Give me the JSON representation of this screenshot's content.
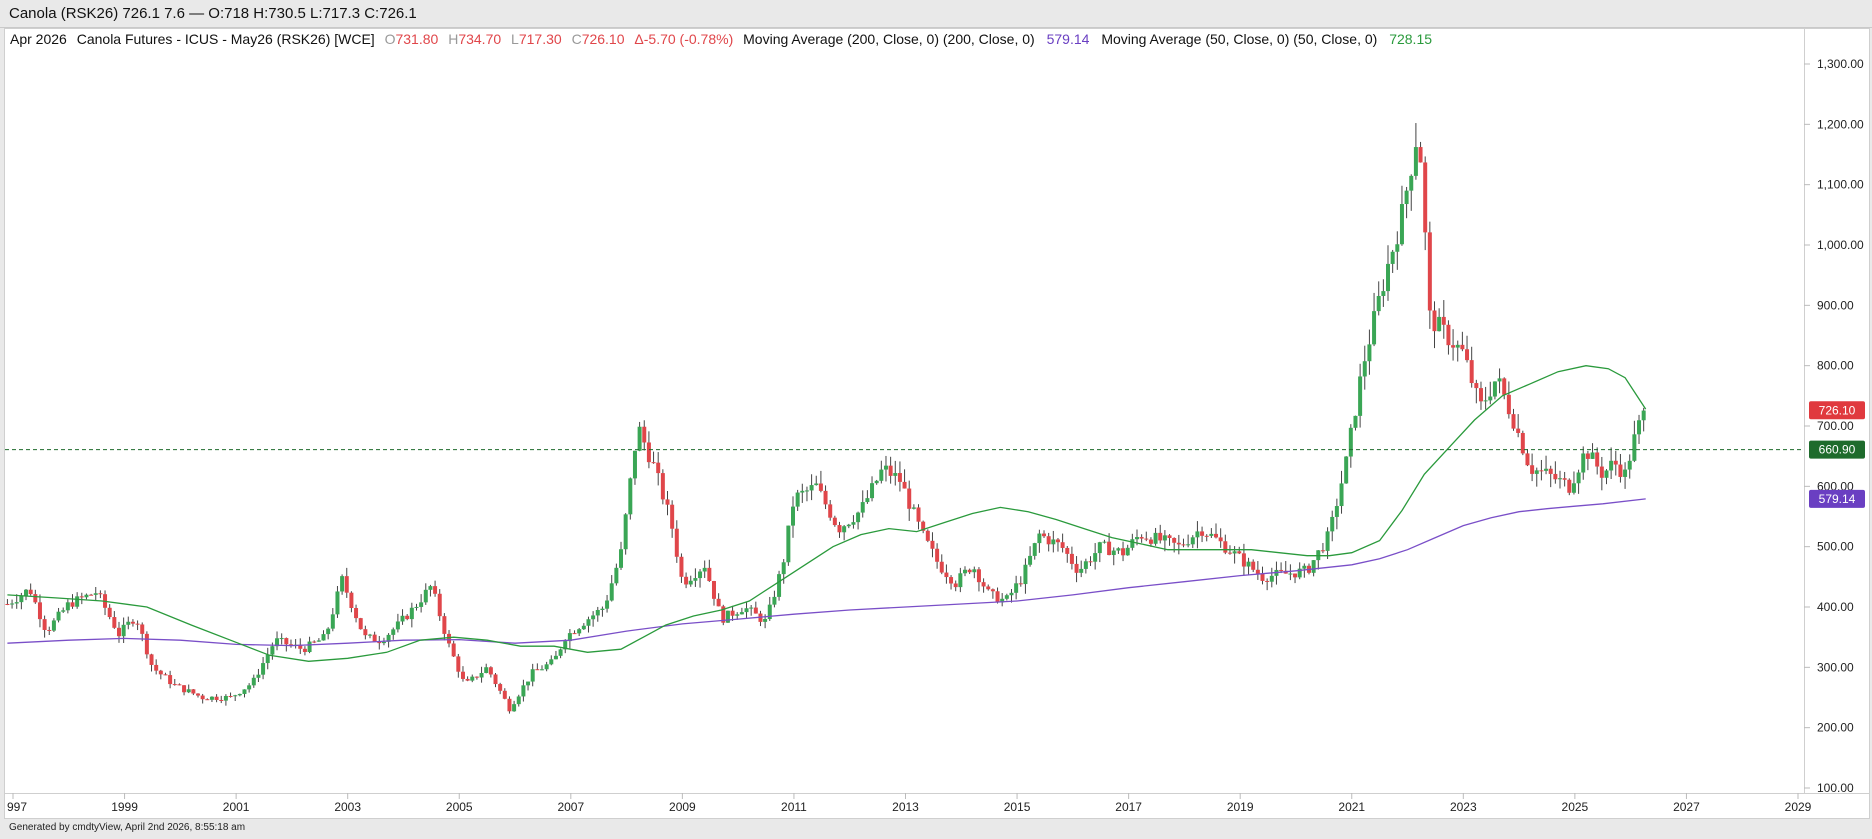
{
  "window": {
    "title": "Canola (RSK26) 726.1 7.6 — O:718 H:730.5 L:717.3 C:726.1"
  },
  "legend": {
    "period": "Apr 2026",
    "instrument": "Canola Futures - ICUS - May26 (RSK26) [WCE]",
    "o_label": "O",
    "o_value": "731.80",
    "h_label": "H",
    "h_value": "734.70",
    "l_label": "L",
    "l_value": "717.30",
    "c_label": "C",
    "c_value": "726.10",
    "change": "Δ-5.70 (-0.78%)",
    "ma200_label": "Moving Average (200, Close, 0)  (200, Close, 0)",
    "ma200_value": "579.14",
    "ma50_label": "Moving Average (50, Close, 0)  (50, Close, 0)",
    "ma50_value": "728.15"
  },
  "price_tags": {
    "last": "726.10",
    "level": "660.90",
    "ma200": "579.14"
  },
  "footer": {
    "text": "Generated by cmdtyView, April 2nd 2026, 8:55:18 am"
  },
  "colors": {
    "up": "#3aa655",
    "down": "#e0464a",
    "ma50": "#2a9a3c",
    "ma200": "#7a4fc8",
    "level": "#1e6b2c",
    "last_tag": "#e0393e",
    "ma200_tag": "#6a3fc2"
  },
  "chart_data": {
    "type": "candlestick",
    "y_axis": {
      "min": 100,
      "max": 1300,
      "position": "right",
      "ticks": [
        "100.00",
        "200.00",
        "300.00",
        "400.00",
        "500.00",
        "600.00",
        "700.00",
        "800.00",
        "900.00",
        "1,000.00",
        "1,100.00",
        "1,200.00",
        "1,300.00"
      ]
    },
    "x_axis": {
      "start_year": 1996.85,
      "end_year": 2029.3,
      "ticks": [
        {
          "label": "997",
          "year": 1997
        },
        {
          "label": "1999",
          "year": 1999
        },
        {
          "label": "2001",
          "year": 2001
        },
        {
          "label": "2003",
          "year": 2003
        },
        {
          "label": "2005",
          "year": 2005
        },
        {
          "label": "2007",
          "year": 2007
        },
        {
          "label": "2009",
          "year": 2009
        },
        {
          "label": "2011",
          "year": 2011
        },
        {
          "label": "2013",
          "year": 2013
        },
        {
          "label": "2015",
          "year": 2015
        },
        {
          "label": "2017",
          "year": 2017
        },
        {
          "label": "2019",
          "year": 2019
        },
        {
          "label": "2021",
          "year": 2021
        },
        {
          "label": "2023",
          "year": 2023
        },
        {
          "label": "2025",
          "year": 2025
        },
        {
          "label": "2027",
          "year": 2027
        },
        {
          "label": "2029",
          "year": 2029
        }
      ]
    },
    "grid": false,
    "close_path": [
      [
        1996.9,
        405
      ],
      [
        1997.3,
        430
      ],
      [
        1997.6,
        360
      ],
      [
        1998.0,
        405
      ],
      [
        1998.5,
        425
      ],
      [
        1998.9,
        355
      ],
      [
        1999.2,
        385
      ],
      [
        1999.5,
        300
      ],
      [
        1999.9,
        270
      ],
      [
        2000.4,
        250
      ],
      [
        2000.9,
        250
      ],
      [
        2001.3,
        275
      ],
      [
        2001.7,
        345
      ],
      [
        2002.2,
        330
      ],
      [
        2002.6,
        350
      ],
      [
        2002.9,
        445
      ],
      [
        2003.3,
        350
      ],
      [
        2003.6,
        345
      ],
      [
        2003.9,
        370
      ],
      [
        2004.2,
        400
      ],
      [
        2004.5,
        435
      ],
      [
        2004.8,
        340
      ],
      [
        2005.1,
        270
      ],
      [
        2005.5,
        300
      ],
      [
        2005.9,
        232
      ],
      [
        2006.3,
        290
      ],
      [
        2006.7,
        310
      ],
      [
        2006.9,
        350
      ],
      [
        2007.3,
        380
      ],
      [
        2007.6,
        400
      ],
      [
        2007.9,
        490
      ],
      [
        2008.2,
        700
      ],
      [
        2008.5,
        630
      ],
      [
        2008.8,
        540
      ],
      [
        2009.0,
        440
      ],
      [
        2009.4,
        470
      ],
      [
        2009.7,
        380
      ],
      [
        2010.1,
        400
      ],
      [
        2010.5,
        375
      ],
      [
        2010.8,
        470
      ],
      [
        2011.0,
        580
      ],
      [
        2011.4,
        600
      ],
      [
        2011.8,
        530
      ],
      [
        2012.2,
        560
      ],
      [
        2012.6,
        630
      ],
      [
        2012.9,
        610
      ],
      [
        2013.3,
        520
      ],
      [
        2013.6,
        470
      ],
      [
        2013.9,
        440
      ],
      [
        2014.2,
        470
      ],
      [
        2014.5,
        420
      ],
      [
        2014.8,
        410
      ],
      [
        2015.1,
        450
      ],
      [
        2015.4,
        520
      ],
      [
        2015.8,
        500
      ],
      [
        2016.1,
        460
      ],
      [
        2016.5,
        500
      ],
      [
        2016.9,
        490
      ],
      [
        2017.2,
        520
      ],
      [
        2017.6,
        510
      ],
      [
        2017.9,
        500
      ],
      [
        2018.3,
        530
      ],
      [
        2018.6,
        510
      ],
      [
        2019.0,
        480
      ],
      [
        2019.4,
        450
      ],
      [
        2019.8,
        455
      ],
      [
        2020.2,
        460
      ],
      [
        2020.6,
        520
      ],
      [
        2020.9,
        640
      ],
      [
        2021.2,
        800
      ],
      [
        2021.6,
        950
      ],
      [
        2021.9,
        1050
      ],
      [
        2022.2,
        1200
      ],
      [
        2022.4,
        880
      ],
      [
        2022.7,
        850
      ],
      [
        2023.0,
        820
      ],
      [
        2023.3,
        730
      ],
      [
        2023.6,
        780
      ],
      [
        2023.9,
        710
      ],
      [
        2024.2,
        630
      ],
      [
        2024.5,
        620
      ],
      [
        2024.9,
        600
      ],
      [
        2025.2,
        660
      ],
      [
        2025.5,
        620
      ],
      [
        2025.7,
        640
      ],
      [
        2025.9,
        620
      ],
      [
        2026.1,
        690
      ],
      [
        2026.27,
        726
      ]
    ],
    "ma50_path": [
      [
        1996.9,
        420
      ],
      [
        1997.8,
        415
      ],
      [
        1998.6,
        410
      ],
      [
        1999.4,
        400
      ],
      [
        2000.2,
        370
      ],
      [
        2000.9,
        345
      ],
      [
        2001.6,
        320
      ],
      [
        2002.3,
        310
      ],
      [
        2003.0,
        315
      ],
      [
        2003.7,
        325
      ],
      [
        2004.3,
        345
      ],
      [
        2004.9,
        350
      ],
      [
        2005.5,
        345
      ],
      [
        2006.1,
        335
      ],
      [
        2006.7,
        335
      ],
      [
        2007.3,
        325
      ],
      [
        2007.9,
        330
      ],
      [
        2008.3,
        350
      ],
      [
        2008.7,
        370
      ],
      [
        2009.2,
        385
      ],
      [
        2009.7,
        395
      ],
      [
        2010.2,
        410
      ],
      [
        2010.7,
        440
      ],
      [
        2011.2,
        470
      ],
      [
        2011.7,
        500
      ],
      [
        2012.2,
        520
      ],
      [
        2012.7,
        530
      ],
      [
        2013.2,
        525
      ],
      [
        2013.7,
        540
      ],
      [
        2014.2,
        555
      ],
      [
        2014.7,
        565
      ],
      [
        2015.2,
        558
      ],
      [
        2015.7,
        545
      ],
      [
        2016.2,
        530
      ],
      [
        2016.7,
        515
      ],
      [
        2017.2,
        505
      ],
      [
        2017.7,
        495
      ],
      [
        2018.2,
        495
      ],
      [
        2018.7,
        495
      ],
      [
        2019.2,
        495
      ],
      [
        2019.7,
        490
      ],
      [
        2020.2,
        485
      ],
      [
        2020.6,
        485
      ],
      [
        2021.0,
        490
      ],
      [
        2021.5,
        510
      ],
      [
        2021.9,
        560
      ],
      [
        2022.3,
        620
      ],
      [
        2022.8,
        670
      ],
      [
        2023.2,
        710
      ],
      [
        2023.7,
        750
      ],
      [
        2024.2,
        770
      ],
      [
        2024.7,
        790
      ],
      [
        2025.2,
        800
      ],
      [
        2025.6,
        795
      ],
      [
        2025.9,
        780
      ],
      [
        2026.27,
        728
      ]
    ],
    "ma200_path": [
      [
        1996.9,
        340
      ],
      [
        1998.0,
        345
      ],
      [
        1999.0,
        348
      ],
      [
        2000.0,
        345
      ],
      [
        2001.0,
        338
      ],
      [
        2002.0,
        336
      ],
      [
        2003.0,
        340
      ],
      [
        2004.0,
        345
      ],
      [
        2005.0,
        346
      ],
      [
        2006.0,
        340
      ],
      [
        2007.0,
        345
      ],
      [
        2008.0,
        360
      ],
      [
        2009.0,
        372
      ],
      [
        2010.0,
        380
      ],
      [
        2011.0,
        388
      ],
      [
        2012.0,
        395
      ],
      [
        2013.0,
        400
      ],
      [
        2014.0,
        405
      ],
      [
        2015.0,
        410
      ],
      [
        2016.0,
        420
      ],
      [
        2017.0,
        432
      ],
      [
        2018.0,
        442
      ],
      [
        2019.0,
        452
      ],
      [
        2020.0,
        460
      ],
      [
        2021.0,
        470
      ],
      [
        2021.5,
        480
      ],
      [
        2022.0,
        495
      ],
      [
        2022.5,
        515
      ],
      [
        2023.0,
        535
      ],
      [
        2023.5,
        548
      ],
      [
        2024.0,
        558
      ],
      [
        2024.5,
        563
      ],
      [
        2025.0,
        567
      ],
      [
        2025.5,
        571
      ],
      [
        2026.27,
        579.14
      ]
    ],
    "level_line": 660.9
  }
}
